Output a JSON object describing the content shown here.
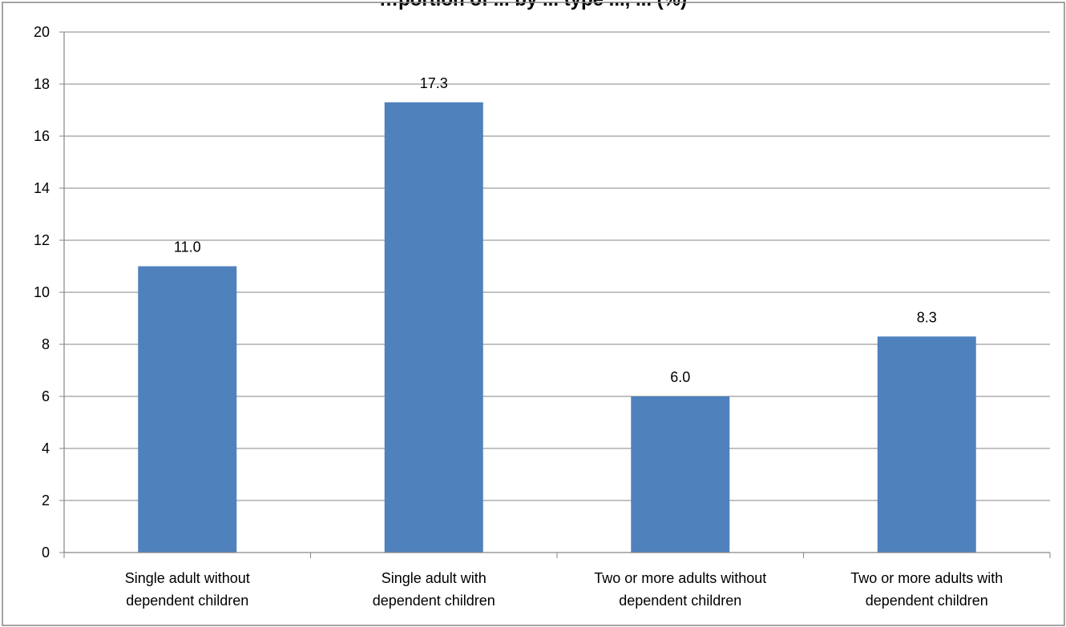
{
  "chart_data": {
    "type": "bar",
    "title": "…portion of ... by ... type ..., ... (%)",
    "categories": [
      [
        "Single adult without",
        "dependent children"
      ],
      [
        "Single adult with",
        "dependent children"
      ],
      [
        "Two or more adults without",
        "dependent children"
      ],
      [
        "Two or more adults with",
        "dependent children"
      ]
    ],
    "values": [
      11.0,
      17.3,
      6.0,
      8.3
    ],
    "data_labels": [
      "11.0",
      "17.3",
      "6.0",
      "8.3"
    ],
    "ylim": [
      0,
      20
    ],
    "yticks": [
      0,
      2,
      4,
      6,
      8,
      10,
      12,
      14,
      16,
      18,
      20
    ],
    "grid": true,
    "legend": "none",
    "bar_color": "#4f81bd",
    "grid_color": "#868686",
    "axis_color": "#868686",
    "border_color": "#868686"
  }
}
